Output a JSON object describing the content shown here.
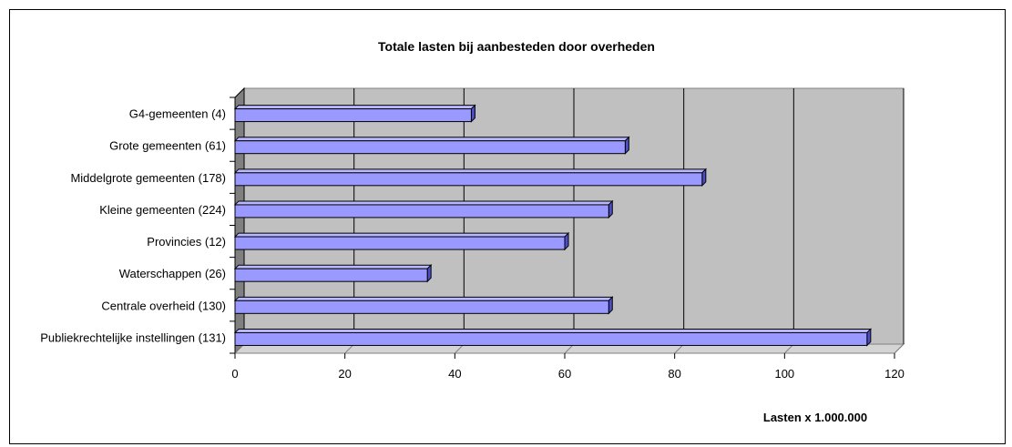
{
  "chart_data": {
    "type": "bar",
    "orientation": "horizontal",
    "style": "3d",
    "title": "Totale lasten bij aanbesteden door overheden",
    "xlabel": "Lasten x 1.000.000",
    "ylabel": "",
    "categories": [
      "G4-gemeenten (4)",
      "Grote gemeenten (61)",
      "Middelgrote gemeenten (178)",
      "Kleine gemeenten (224)",
      "Provincies (12)",
      "Waterschappen (26)",
      "Centrale overheid (130)",
      "Publiekrechtelijke instellingen (131)"
    ],
    "values": [
      43,
      71,
      85,
      68,
      60,
      35,
      68,
      115
    ],
    "xlim": [
      0,
      120
    ],
    "xticks": [
      0,
      20,
      40,
      60,
      80,
      100,
      120
    ],
    "grid": true,
    "legend": "none",
    "colors": {
      "bar_front": "#9999ff",
      "bar_top": "#b8b8ff",
      "bar_side": "#4d4dc8",
      "bar_edge": "#000000",
      "plot_back": "#c0c0c0",
      "plot_side": "#808080",
      "plot_floor": "#d4d4d4",
      "gridline": "#000000"
    }
  }
}
